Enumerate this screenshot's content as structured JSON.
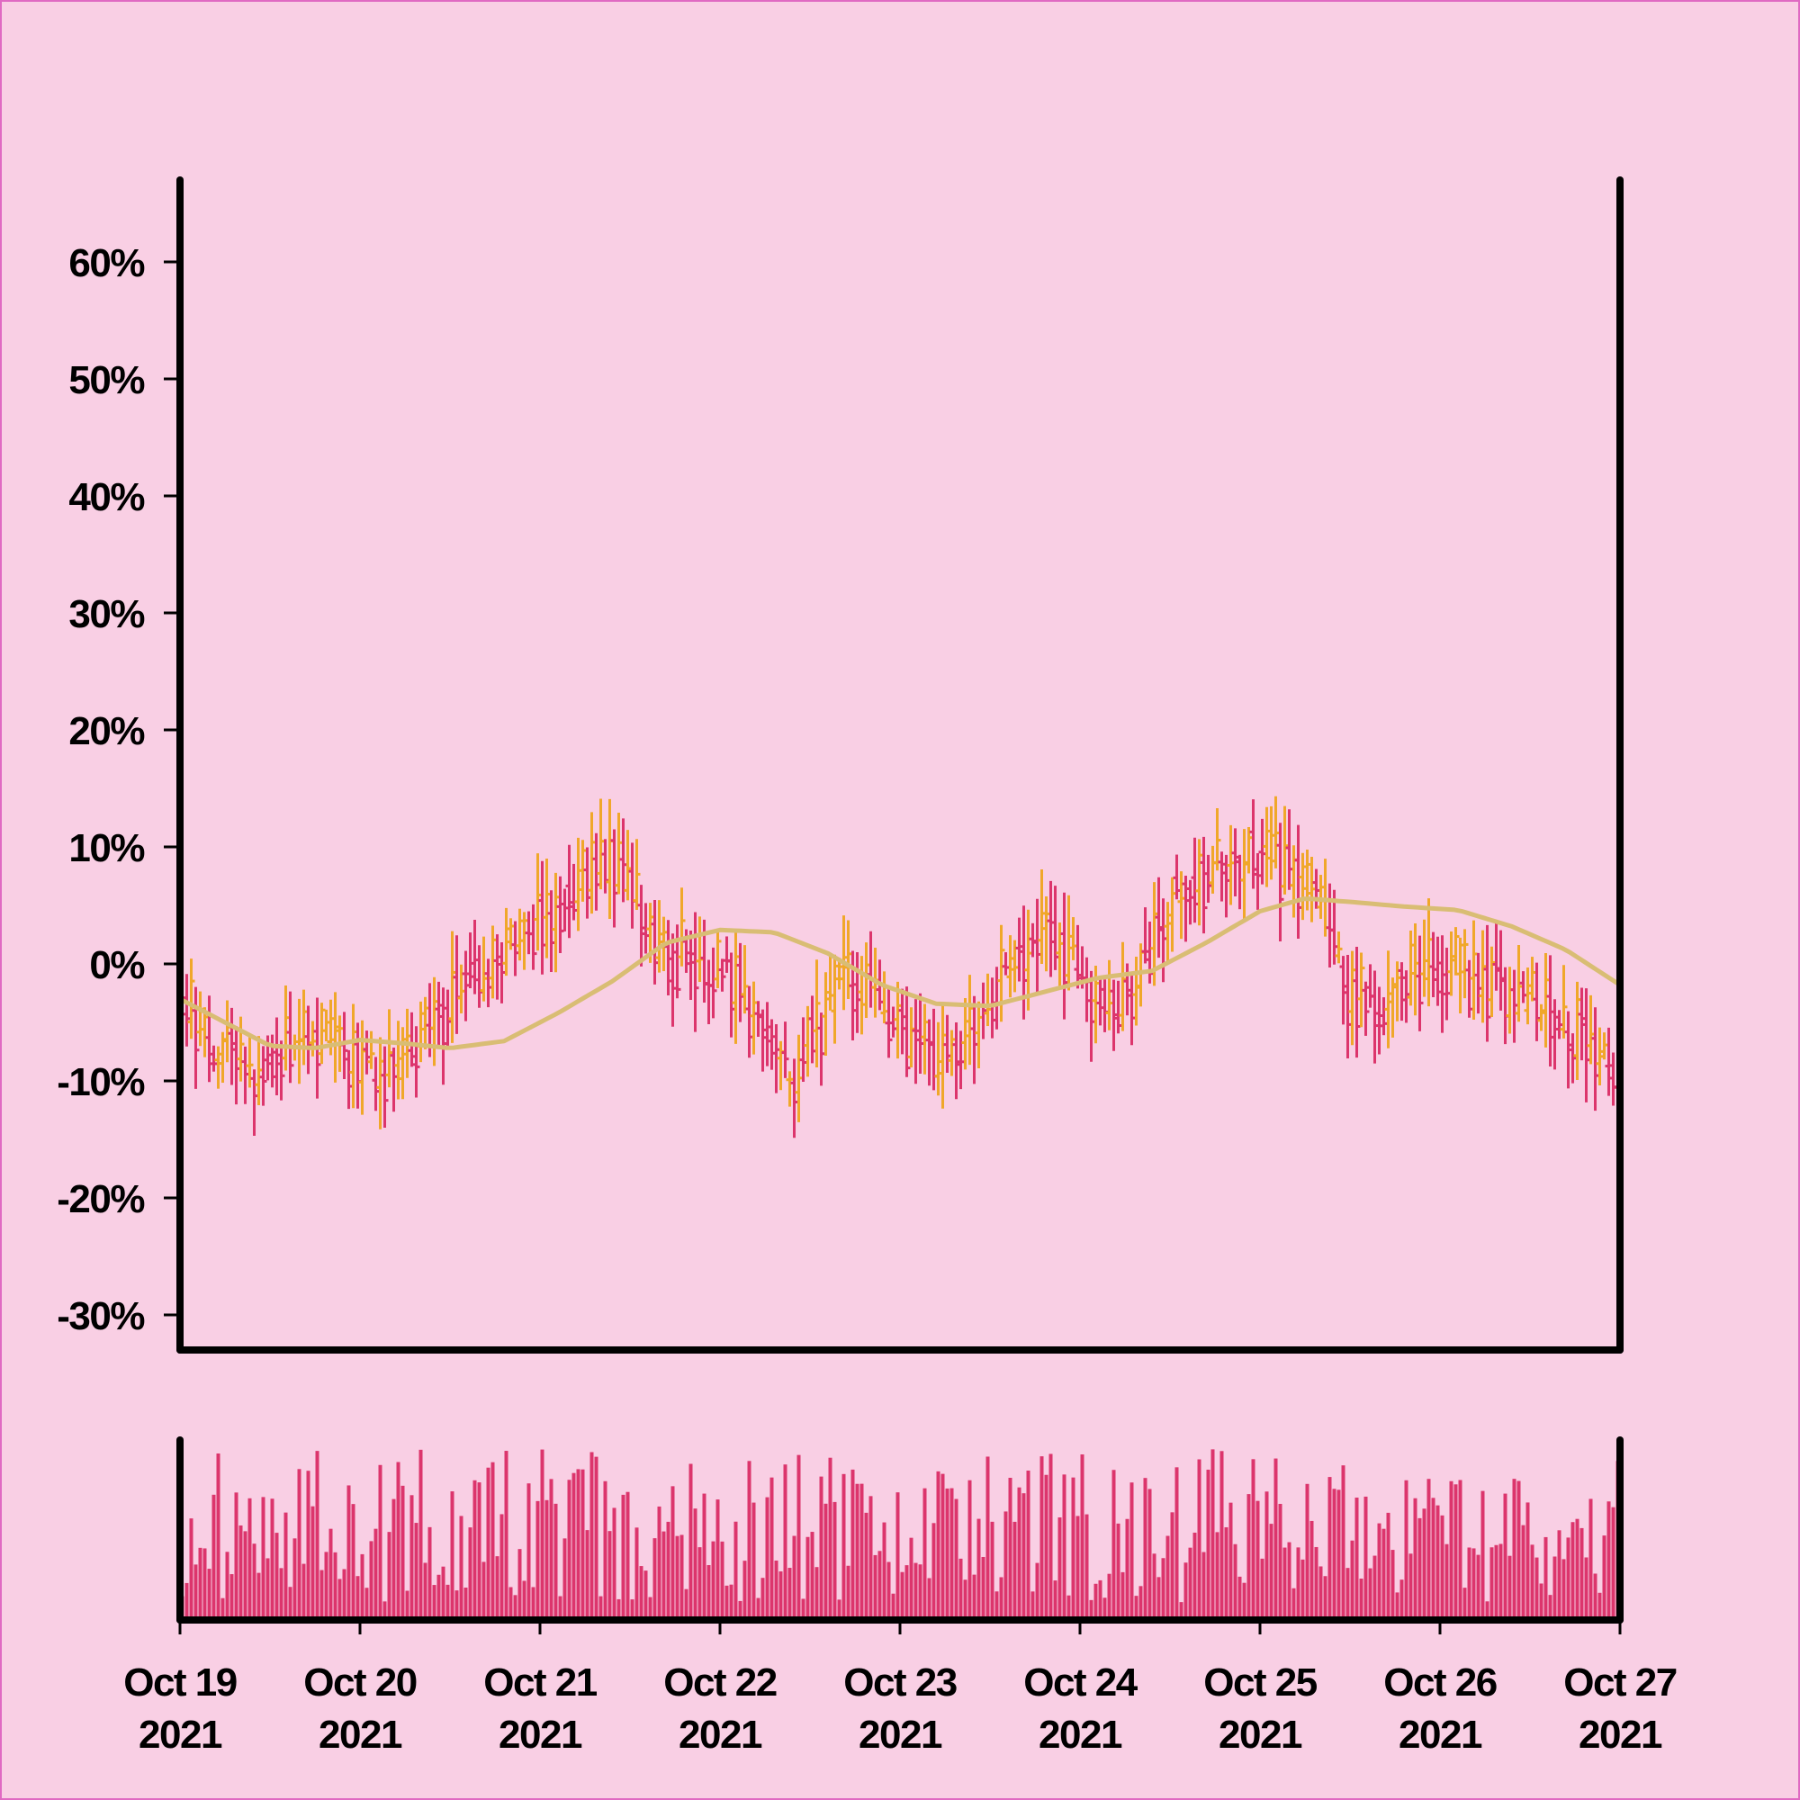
{
  "chart_data": {
    "type": "ohlc",
    "colors": {
      "background": "#f9cfe4",
      "up": "#f0a72a",
      "down": "#dc356c",
      "moving_average": "#d9bd74",
      "volume": "#dc356c",
      "axis": "#000000"
    },
    "price_axis": {
      "ylim": [
        -33,
        67
      ],
      "ticks": [
        60,
        50,
        40,
        30,
        20,
        10,
        0,
        -10,
        -20,
        -30
      ],
      "tick_labels": [
        "60%",
        "50%",
        "40%",
        "30%",
        "20%",
        "10%",
        "0%",
        "-10%",
        "-20%",
        "-30%"
      ]
    },
    "time_axis": {
      "xlim": [
        0,
        8
      ],
      "ticks": [
        0,
        1,
        2,
        3,
        4,
        5,
        6,
        7,
        8
      ],
      "tick_labels": [
        [
          "Oct 19",
          "2021"
        ],
        [
          "Oct 20",
          "2021"
        ],
        [
          "Oct 21",
          "2021"
        ],
        [
          "Oct 22",
          "2021"
        ],
        [
          "Oct 23",
          "2021"
        ],
        [
          "Oct 24",
          "2021"
        ],
        [
          "Oct 25",
          "2021"
        ],
        [
          "Oct 26",
          "2021"
        ],
        [
          "Oct 27",
          "2021"
        ]
      ]
    },
    "bars_per_day": 40,
    "trend_anchors_percent": [
      [
        0.0,
        -3
      ],
      [
        0.35,
        -9
      ],
      [
        0.8,
        -6
      ],
      [
        1.15,
        -10
      ],
      [
        1.3,
        -8
      ],
      [
        1.55,
        -2
      ],
      [
        2.1,
        5
      ],
      [
        2.4,
        9
      ],
      [
        2.7,
        1
      ],
      [
        3.0,
        0
      ],
      [
        3.25,
        -5
      ],
      [
        3.4,
        -10
      ],
      [
        3.7,
        -1
      ],
      [
        4.0,
        -6
      ],
      [
        4.25,
        -8
      ],
      [
        4.65,
        0
      ],
      [
        4.8,
        4
      ],
      [
        5.1,
        -3
      ],
      [
        5.3,
        -2
      ],
      [
        5.5,
        6
      ],
      [
        5.8,
        8
      ],
      [
        6.0,
        10
      ],
      [
        6.3,
        6
      ],
      [
        6.5,
        -3
      ],
      [
        6.75,
        -2
      ],
      [
        7.0,
        0
      ],
      [
        7.3,
        -2
      ],
      [
        7.7,
        -5
      ],
      [
        8.0,
        -10
      ]
    ],
    "moving_average_percent": [
      [
        0.0,
        -3
      ],
      [
        0.25,
        -5
      ],
      [
        0.5,
        -7
      ],
      [
        0.75,
        -7.2
      ],
      [
        1.0,
        -6.5
      ],
      [
        1.25,
        -6.8
      ],
      [
        1.5,
        -7.2
      ],
      [
        1.8,
        -6.6
      ],
      [
        2.1,
        -4.2
      ],
      [
        2.4,
        -1.5
      ],
      [
        2.7,
        1.8
      ],
      [
        3.0,
        2.9
      ],
      [
        3.3,
        2.7
      ],
      [
        3.6,
        0.9
      ],
      [
        3.9,
        -1.8
      ],
      [
        4.2,
        -3.4
      ],
      [
        4.5,
        -3.6
      ],
      [
        4.8,
        -2.4
      ],
      [
        5.1,
        -1.2
      ],
      [
        5.4,
        -0.6
      ],
      [
        5.7,
        1.8
      ],
      [
        6.0,
        4.5
      ],
      [
        6.25,
        5.6
      ],
      [
        6.5,
        5.3
      ],
      [
        6.8,
        4.9
      ],
      [
        7.1,
        4.6
      ],
      [
        7.4,
        3.2
      ],
      [
        7.7,
        1.2
      ],
      [
        8.0,
        -1.8
      ]
    ],
    "volume_range": [
      0.1,
      1.0
    ]
  }
}
